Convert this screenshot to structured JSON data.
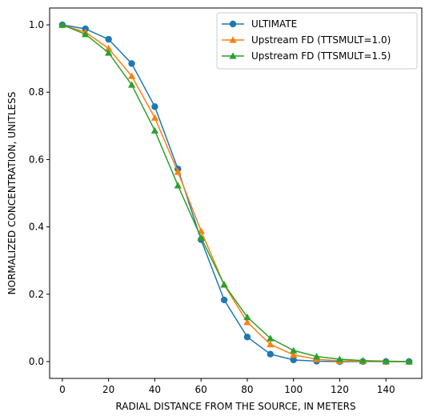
{
  "chart_data": {
    "type": "line",
    "title": "",
    "xlabel": "RADIAL DISTANCE FROM THE SOURCE, IN METERS",
    "ylabel": "NORMALIZED CONCENTRATION, UNITLESS",
    "xlim": [
      -5.5,
      155.5
    ],
    "ylim": [
      -0.05,
      1.05
    ],
    "xticks": [
      0,
      20,
      40,
      60,
      80,
      100,
      120,
      140
    ],
    "yticks": [
      0.0,
      0.2,
      0.4,
      0.6,
      0.8,
      1.0
    ],
    "xtick_labels": [
      "0",
      "20",
      "40",
      "60",
      "80",
      "100",
      "120",
      "140"
    ],
    "ytick_labels": [
      "0.0",
      "0.2",
      "0.4",
      "0.6",
      "0.8",
      "1.0"
    ],
    "grid": false,
    "legend_position": "top-right",
    "x": [
      0,
      10,
      20,
      30,
      40,
      50,
      60,
      70,
      80,
      90,
      100,
      110,
      120,
      130,
      140,
      150
    ],
    "series": [
      {
        "name": "ULTIMATE",
        "color": "#1f77b4",
        "marker": "circle",
        "values": [
          1.0,
          0.988,
          0.957,
          0.885,
          0.757,
          0.572,
          0.362,
          0.183,
          0.073,
          0.022,
          0.005,
          0.001,
          0.0,
          0.0,
          0.0,
          0.0
        ]
      },
      {
        "name": "Upstream FD (TTSMULT=1.0)",
        "color": "#ff7f0e",
        "marker": "triangle",
        "values": [
          1.0,
          0.978,
          0.93,
          0.848,
          0.724,
          0.563,
          0.388,
          0.228,
          0.117,
          0.051,
          0.02,
          0.007,
          0.002,
          0.001,
          0.0,
          0.0
        ]
      },
      {
        "name": "Upstream FD (TTSMULT=1.5)",
        "color": "#2ca02c",
        "marker": "triangle",
        "values": [
          1.0,
          0.972,
          0.917,
          0.822,
          0.686,
          0.523,
          0.368,
          0.229,
          0.132,
          0.069,
          0.033,
          0.015,
          0.007,
          0.003,
          0.001,
          0.0
        ]
      }
    ]
  }
}
